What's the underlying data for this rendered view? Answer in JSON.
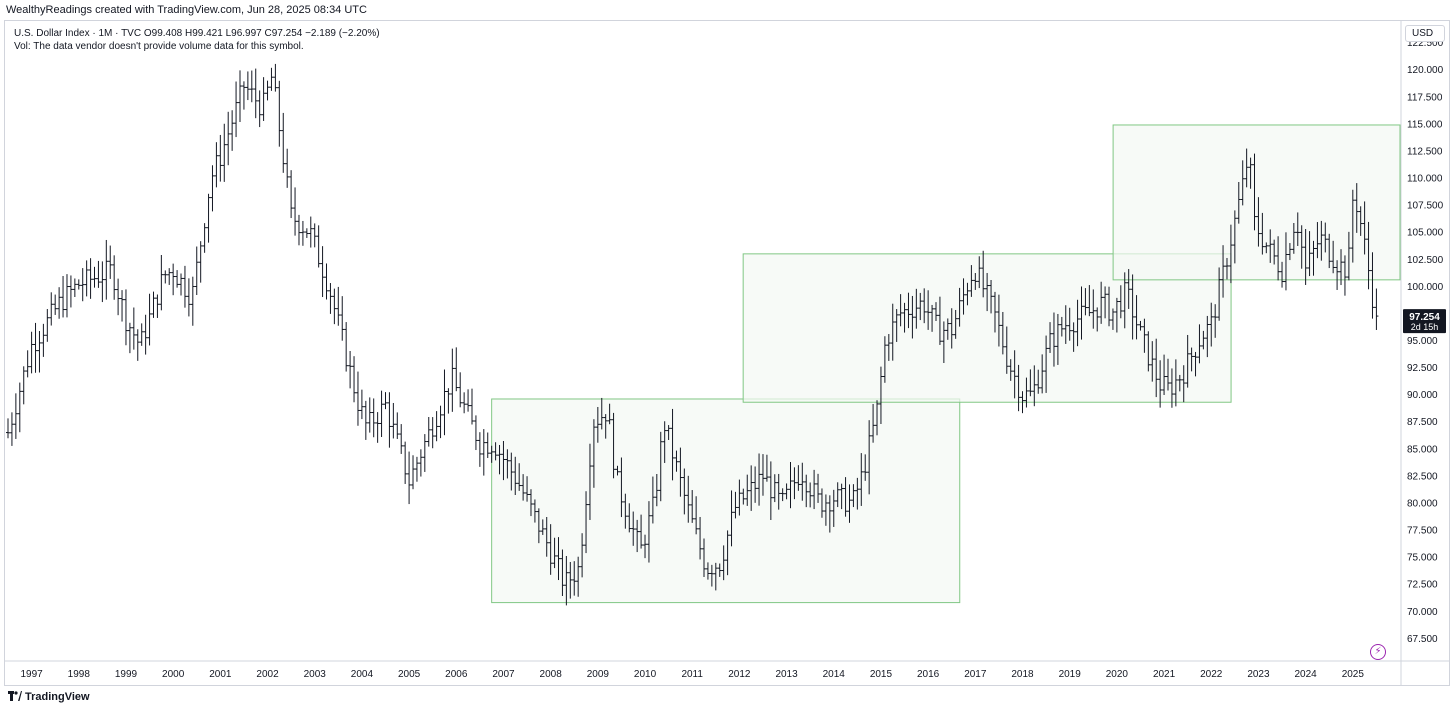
{
  "header": {
    "caption": "WealthyReadings created with TradingView.com, Jun 28, 2025 08:34 UTC"
  },
  "legend": {
    "line1": "U.S. Dollar Index · 1M · TVC  O99.408  H99.421  L96.997  C97.254  −2.189 (−2.20%)",
    "line2": "Vol: The data vendor doesn't provide volume data for this symbol."
  },
  "price_axis": {
    "currency": "USD",
    "last_price": "97.254",
    "countdown": "2d 15h"
  },
  "footer": {
    "brand": "TradingView"
  },
  "icons": {
    "logo": "tradingview-logo-icon",
    "bolt": "lightning-bolt-icon"
  },
  "colors": {
    "candle": "#131722",
    "box_stroke": "#81c784",
    "box_fill": "#f3f8f3",
    "last_price_bg": "#131722",
    "accent": "#9c27b0"
  },
  "chart_data": {
    "type": "ohlc",
    "interval": "1M",
    "symbol": "U.S. Dollar Index",
    "x_ticks": [
      "1997",
      "1998",
      "1999",
      "2000",
      "2001",
      "2002",
      "2003",
      "2004",
      "2005",
      "2006",
      "2007",
      "2008",
      "2009",
      "2010",
      "2011",
      "2012",
      "2013",
      "2014",
      "2015",
      "2016",
      "2017",
      "2018",
      "2019",
      "2020",
      "2021",
      "2022",
      "2023",
      "2024",
      "2025"
    ],
    "y_ticks": [
      "67.500",
      "70.000",
      "72.500",
      "75.000",
      "77.500",
      "80.000",
      "82.500",
      "85.000",
      "87.500",
      "90.000",
      "92.500",
      "95.000",
      "97.500",
      "100.000",
      "102.500",
      "105.000",
      "107.500",
      "110.000",
      "112.500",
      "115.000",
      "117.500",
      "120.000",
      "122.500"
    ],
    "ylim": [
      65.5,
      124.5
    ],
    "xlim": [
      1996.5,
      2026.0
    ],
    "last_close": 97.254,
    "boxes": [
      {
        "x0": 2006.75,
        "x1": 2016.67,
        "y0": 70.8,
        "y1": 89.6
      },
      {
        "x0": 2012.08,
        "x1": 2022.42,
        "y0": 89.3,
        "y1": 103.0
      },
      {
        "x0": 2019.92,
        "x1": 2026.0,
        "y0": 100.6,
        "y1": 114.9
      }
    ],
    "anchors": [
      [
        1996.5,
        86.5
      ],
      [
        1997.0,
        94.5
      ],
      [
        1997.6,
        98.5
      ],
      [
        1998.0,
        100.2
      ],
      [
        1998.7,
        101.5
      ],
      [
        1999.0,
        97.0
      ],
      [
        1999.3,
        94.5
      ],
      [
        1999.8,
        101.0
      ],
      [
        2000.0,
        101.5
      ],
      [
        2000.4,
        99.0
      ],
      [
        2000.8,
        110.0
      ],
      [
        2001.0,
        112.0
      ],
      [
        2001.5,
        118.5
      ],
      [
        2001.9,
        116.5
      ],
      [
        2002.1,
        119.5
      ],
      [
        2002.5,
        106.5
      ],
      [
        2002.9,
        105.0
      ],
      [
        2003.3,
        100.0
      ],
      [
        2003.9,
        89.5
      ],
      [
        2004.1,
        87.0
      ],
      [
        2004.5,
        89.0
      ],
      [
        2004.9,
        83.5
      ],
      [
        2005.0,
        82.0
      ],
      [
        2005.9,
        91.5
      ],
      [
        2006.5,
        85.5
      ],
      [
        2006.8,
        85.5
      ],
      [
        2007.3,
        82.0
      ],
      [
        2007.9,
        76.5
      ],
      [
        2008.3,
        72.5
      ],
      [
        2008.6,
        74.0
      ],
      [
        2008.9,
        87.5
      ],
      [
        2009.2,
        88.5
      ],
      [
        2009.4,
        82.0
      ],
      [
        2009.9,
        75.5
      ],
      [
        2010.2,
        80.0
      ],
      [
        2010.4,
        87.5
      ],
      [
        2010.9,
        79.5
      ],
      [
        2011.3,
        74.0
      ],
      [
        2011.6,
        74.5
      ],
      [
        2011.9,
        79.5
      ],
      [
        2012.5,
        82.5
      ],
      [
        2012.9,
        79.8
      ],
      [
        2013.3,
        83.0
      ],
      [
        2013.7,
        80.0
      ],
      [
        2014.0,
        80.5
      ],
      [
        2014.4,
        80.0
      ],
      [
        2014.6,
        82.5
      ],
      [
        2014.9,
        88.0
      ],
      [
        2015.1,
        95.0
      ],
      [
        2015.4,
        97.5
      ],
      [
        2015.9,
        98.5
      ],
      [
        2016.2,
        96.0
      ],
      [
        2016.5,
        96.0
      ],
      [
        2016.9,
        101.0
      ],
      [
        2017.0,
        101.5
      ],
      [
        2017.4,
        97.5
      ],
      [
        2017.7,
        93.0
      ],
      [
        2018.0,
        90.0
      ],
      [
        2018.2,
        90.0
      ],
      [
        2018.6,
        95.0
      ],
      [
        2018.9,
        96.5
      ],
      [
        2019.4,
        97.5
      ],
      [
        2019.7,
        98.5
      ],
      [
        2019.9,
        97.5
      ],
      [
        2020.2,
        99.5
      ],
      [
        2020.5,
        95.5
      ],
      [
        2020.9,
        91.0
      ],
      [
        2021.1,
        90.5
      ],
      [
        2021.4,
        92.0
      ],
      [
        2021.8,
        95.5
      ],
      [
        2022.0,
        96.5
      ],
      [
        2022.3,
        102.0
      ],
      [
        2022.7,
        110.0
      ],
      [
        2022.8,
        112.5
      ],
      [
        2022.9,
        106.0
      ],
      [
        2023.2,
        103.5
      ],
      [
        2023.5,
        101.5
      ],
      [
        2023.8,
        106.5
      ],
      [
        2024.0,
        101.5
      ],
      [
        2024.3,
        104.5
      ],
      [
        2024.7,
        102.0
      ],
      [
        2024.9,
        101.5
      ],
      [
        2025.0,
        108.0
      ],
      [
        2025.1,
        107.5
      ],
      [
        2025.3,
        102.5
      ],
      [
        2025.4,
        99.5
      ],
      [
        2025.5,
        97.25
      ]
    ]
  }
}
